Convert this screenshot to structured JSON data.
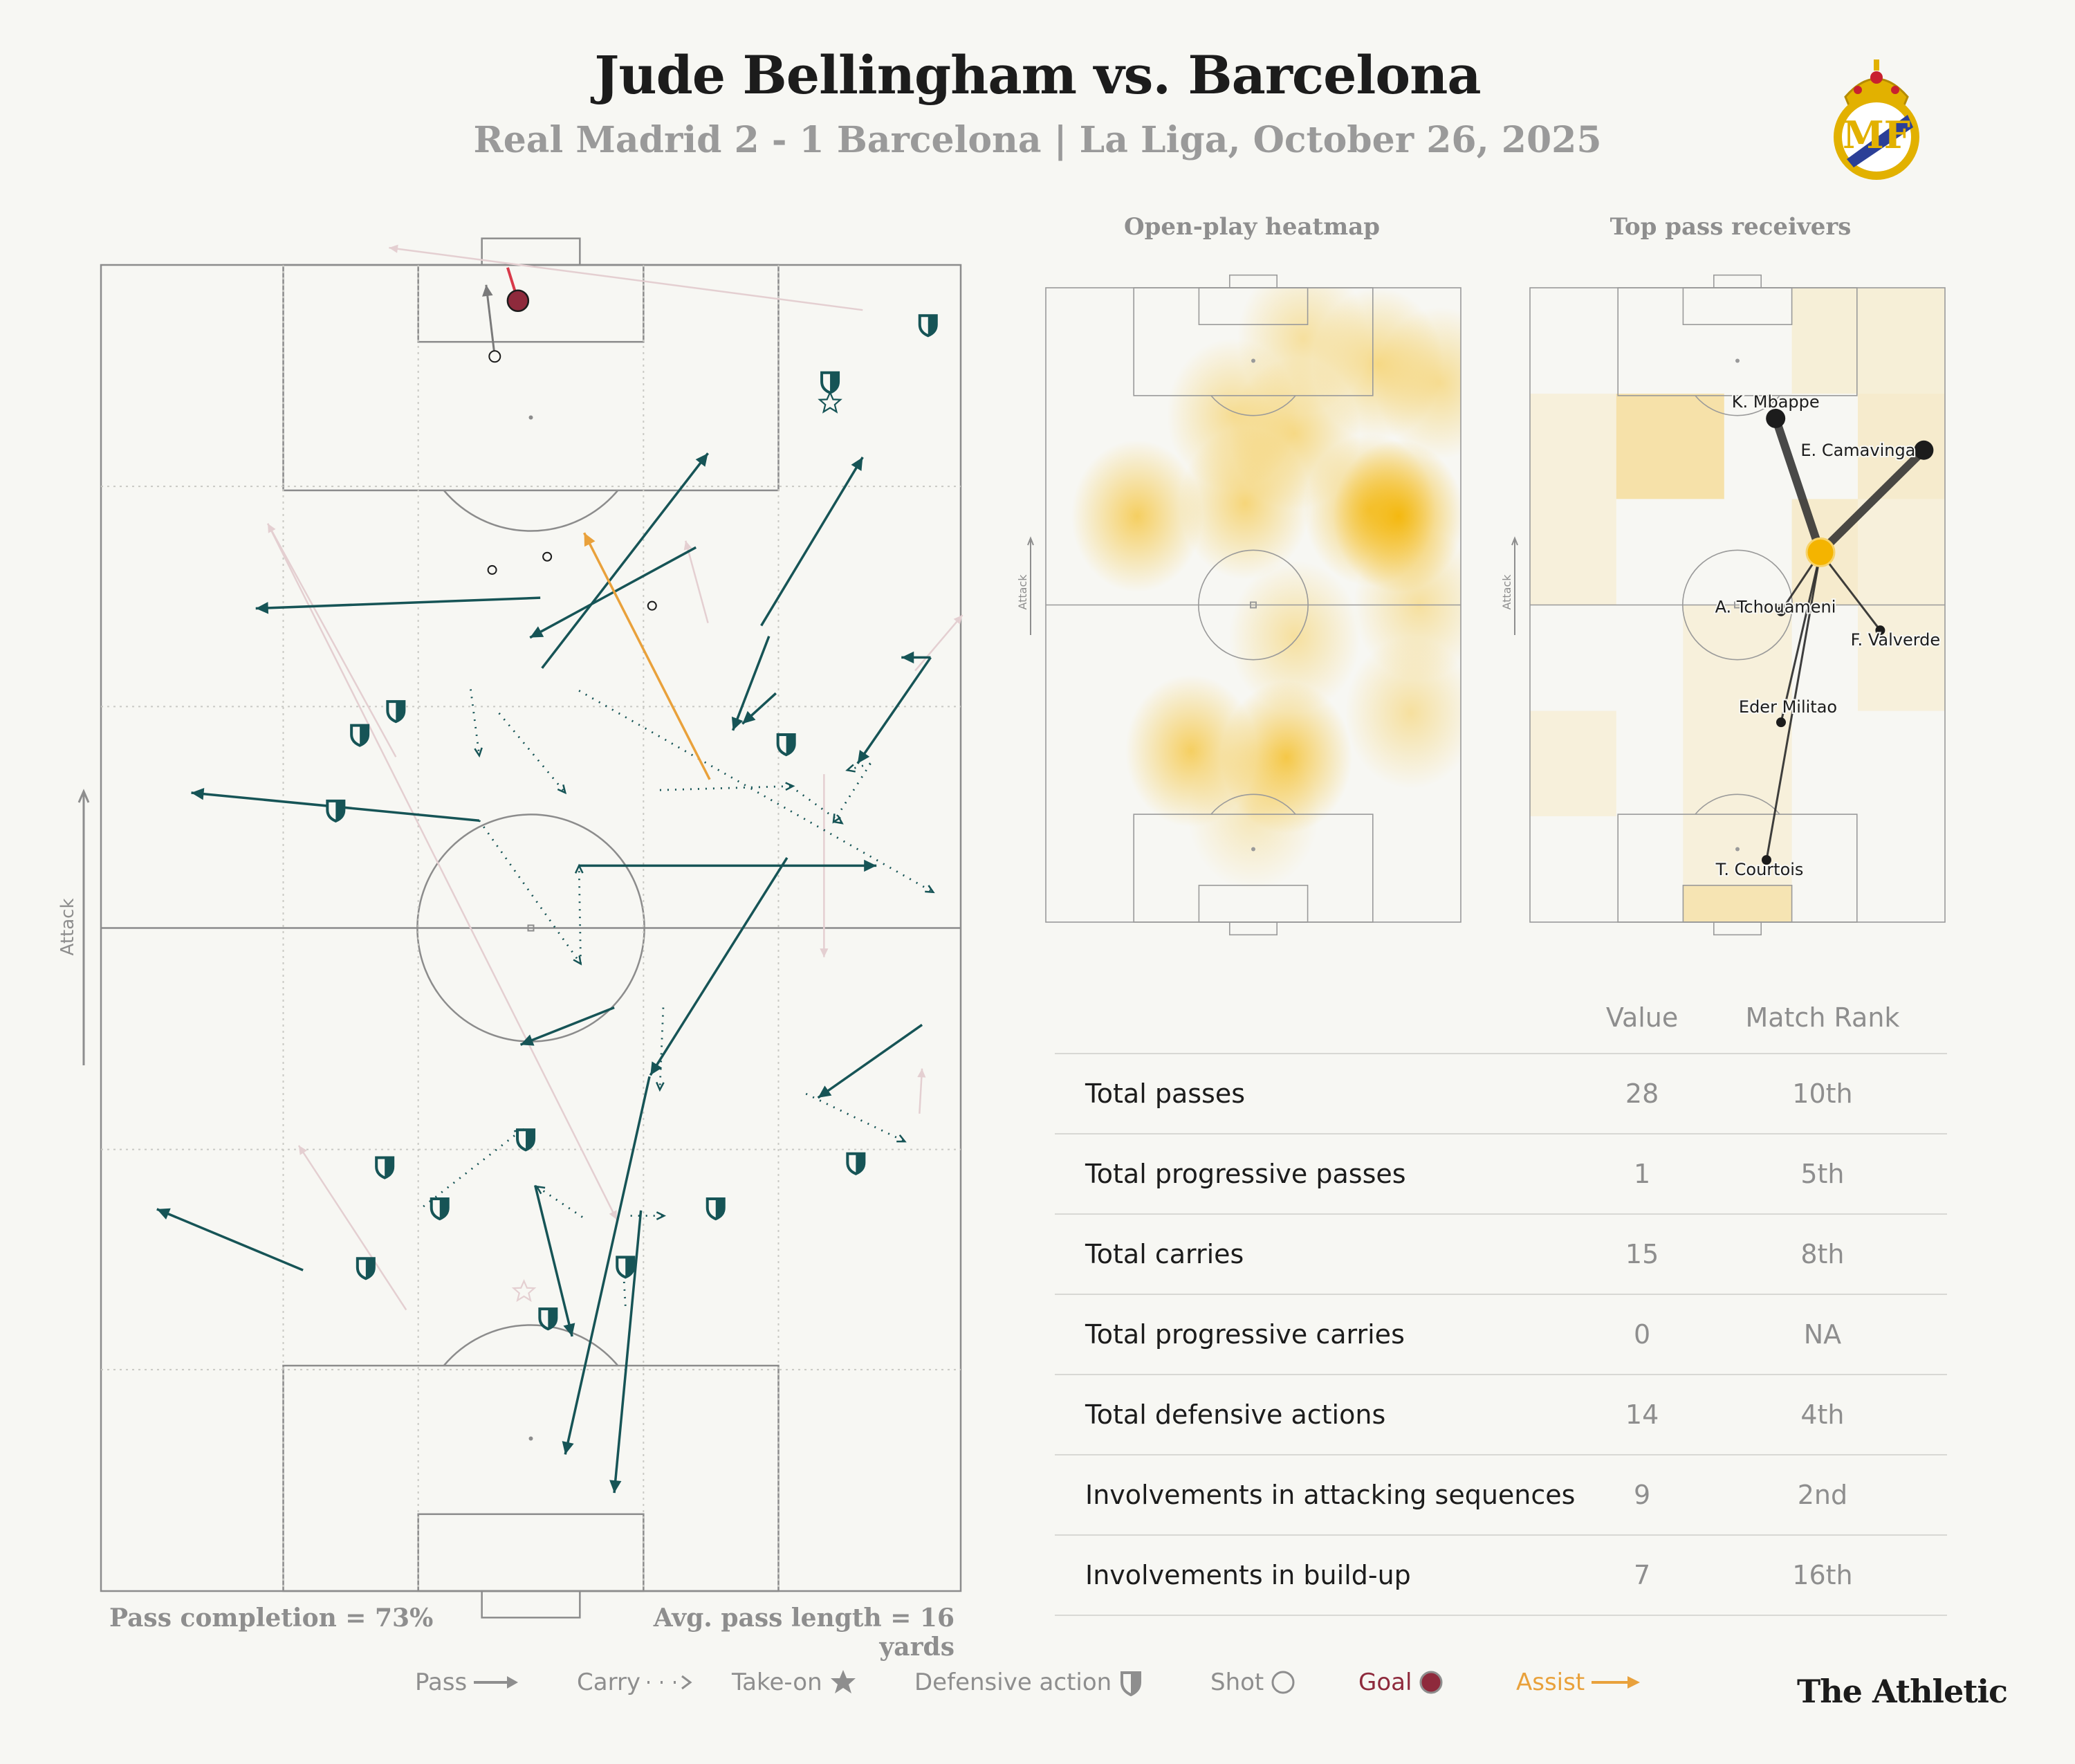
{
  "header": {
    "title": "Jude Bellingham vs. Barcelona",
    "subtitle": "Real Madrid 2 - 1 Barcelona | La Liga, October 26, 2025"
  },
  "colors": {
    "pass": "#165456",
    "assist": "#e9a13b",
    "goal": "#8e2a3c",
    "take_on": "#a9c2bd",
    "heat": "#f4b400",
    "background": "#f7f7f3",
    "muted_text": "#8e8e8e"
  },
  "icons": {
    "crest": "real-madrid-crest-icon",
    "defensive": "shield-icon",
    "take_on": "star-icon",
    "shot": "circle-icon"
  },
  "main_pitch": {
    "attack_label": "Attack",
    "footer_left": "Pass completion = 73%",
    "footer_right": "Avg. pass length = 16 yards"
  },
  "heatmap": {
    "title": "Open-play heatmap",
    "attack_label": "Attack"
  },
  "receivers": {
    "title": "Top pass receivers",
    "attack_label": "Attack"
  },
  "stats_table": {
    "col_value": "Value",
    "col_rank": "Match Rank",
    "rows": [
      {
        "label": "Total passes",
        "value": "28",
        "rank": "10th"
      },
      {
        "label": "Total progressive passes",
        "value": "1",
        "rank": "5th"
      },
      {
        "label": "Total carries",
        "value": "15",
        "rank": "8th"
      },
      {
        "label": "Total progressive carries",
        "value": "0",
        "rank": "NA"
      },
      {
        "label": "Total defensive actions",
        "value": "14",
        "rank": "4th"
      },
      {
        "label": "Involvements in attacking sequences",
        "value": "9",
        "rank": "2nd"
      },
      {
        "label": "Involvements in build-up",
        "value": "7",
        "rank": "16th"
      }
    ]
  },
  "legend": {
    "pass": "Pass",
    "carry": "Carry",
    "take_on": "Take-on",
    "defensive": "Defensive action",
    "shot": "Shot",
    "goal": "Goal",
    "assist": "Assist"
  },
  "brand": "The Athletic",
  "chart_data": [
    {
      "type": "scatter",
      "name": "event-map",
      "x_unit": "pitch width 0-100 (left to right)",
      "y_unit": "pitch length 0-100 (attacking direction upward)",
      "xlim": [
        0,
        100
      ],
      "ylim": [
        0,
        100
      ],
      "passes": [
        {
          "from": [
            51.3,
            69.6
          ],
          "to": [
            70.6,
            85.8
          ]
        },
        {
          "from": [
            51.1,
            74.9
          ],
          "to": [
            18.0,
            74.1
          ]
        },
        {
          "from": [
            69.2,
            78.7
          ],
          "to": [
            49.9,
            71.9
          ]
        },
        {
          "from": [
            76.8,
            72.8
          ],
          "to": [
            88.6,
            85.5
          ]
        },
        {
          "from": [
            78.5,
            67.7
          ],
          "to": [
            74.6,
            65.4
          ]
        },
        {
          "from": [
            77.7,
            72.0
          ],
          "to": [
            73.5,
            64.9
          ]
        },
        {
          "from": [
            96.5,
            70.4
          ],
          "to": [
            93.1,
            70.4
          ]
        },
        {
          "from": [
            96.5,
            70.4
          ],
          "to": [
            88.0,
            62.4
          ]
        },
        {
          "from": [
            44.0,
            58.1
          ],
          "to": [
            10.5,
            60.2
          ]
        },
        {
          "from": [
            55.6,
            54.7
          ],
          "to": [
            90.2,
            54.7
          ]
        },
        {
          "from": [
            59.7,
            44.0
          ],
          "to": [
            48.8,
            41.2
          ]
        },
        {
          "from": [
            79.8,
            55.3
          ],
          "to": [
            63.9,
            38.9
          ]
        },
        {
          "from": [
            95.5,
            42.7
          ],
          "to": [
            83.4,
            37.2
          ]
        },
        {
          "from": [
            23.5,
            24.2
          ],
          "to": [
            6.5,
            28.8
          ]
        },
        {
          "from": [
            63.8,
            38.8
          ],
          "to": [
            54.0,
            10.3
          ]
        },
        {
          "from": [
            50.5,
            30.6
          ],
          "to": [
            54.8,
            19.2
          ]
        },
        {
          "from": [
            62.8,
            28.7
          ],
          "to": [
            59.7,
            7.4
          ]
        }
      ],
      "carries": [
        {
          "from": [
            43.0,
            68.0
          ],
          "to": [
            44.0,
            63.0
          ]
        },
        {
          "from": [
            46.3,
            66.2
          ],
          "to": [
            54.0,
            60.2
          ]
        },
        {
          "from": [
            55.6,
            67.9
          ],
          "to": [
            96.8,
            52.7
          ]
        },
        {
          "from": [
            44.0,
            58.1
          ],
          "to": [
            55.8,
            47.3
          ]
        },
        {
          "from": [
            55.8,
            47.3
          ],
          "to": [
            55.6,
            54.7
          ]
        },
        {
          "from": [
            89.5,
            62.4
          ],
          "to": [
            85.2,
            58.0
          ]
        },
        {
          "from": [
            89.5,
            62.4
          ],
          "to": [
            86.8,
            61.9
          ]
        },
        {
          "from": [
            80.2,
            60.7
          ],
          "to": [
            86.2,
            57.9
          ]
        },
        {
          "from": [
            65.0,
            60.4
          ],
          "to": [
            80.5,
            60.7
          ]
        },
        {
          "from": [
            65.4,
            44.0
          ],
          "to": [
            65.0,
            37.8
          ]
        },
        {
          "from": [
            37.5,
            29.0
          ],
          "to": [
            49.0,
            34.8
          ]
        },
        {
          "from": [
            56.0,
            28.2
          ],
          "to": [
            50.7,
            30.5
          ]
        },
        {
          "from": [
            61.6,
            28.3
          ],
          "to": [
            65.5,
            28.3
          ]
        },
        {
          "from": [
            61.0,
            21.5
          ],
          "to": [
            60.7,
            25.0
          ]
        },
        {
          "from": [
            82.0,
            37.5
          ],
          "to": [
            93.5,
            33.9
          ]
        }
      ],
      "assists": [
        {
          "from": [
            70.8,
            61.2
          ],
          "to": [
            56.2,
            79.8
          ]
        }
      ],
      "goals": [
        {
          "x": 48.5,
          "y": 97.3,
          "to": [
            47.3,
            99.8
          ]
        }
      ],
      "shots": [
        {
          "x": 45.8,
          "y": 93.1,
          "to": [
            44.8,
            98.5
          ]
        },
        {
          "x": 45.5,
          "y": 77.0
        },
        {
          "x": 51.9,
          "y": 78.0
        },
        {
          "x": 64.1,
          "y": 74.3
        }
      ],
      "take_ons": [
        {
          "x": 84.8,
          "y": 89.6
        },
        {
          "x": 49.2,
          "y": 22.6
        }
      ],
      "defensive_actions": [
        {
          "x": 96.2,
          "y": 95.5
        },
        {
          "x": 84.8,
          "y": 91.2
        },
        {
          "x": 34.3,
          "y": 66.4
        },
        {
          "x": 30.1,
          "y": 64.6
        },
        {
          "x": 79.7,
          "y": 63.9
        },
        {
          "x": 27.3,
          "y": 58.9
        },
        {
          "x": 49.4,
          "y": 34.1
        },
        {
          "x": 33.0,
          "y": 32.0
        },
        {
          "x": 87.8,
          "y": 32.3
        },
        {
          "x": 39.4,
          "y": 28.9
        },
        {
          "x": 71.5,
          "y": 28.9
        },
        {
          "x": 61.0,
          "y": 24.5
        },
        {
          "x": 30.8,
          "y": 24.4
        },
        {
          "x": 52.0,
          "y": 20.6
        }
      ],
      "faded_events": [
        {
          "from": [
            88.6,
            96.6
          ],
          "to": [
            33.5,
            101.3
          ]
        },
        {
          "from": [
            34.3,
            62.9
          ],
          "to": [
            19.4,
            80.5
          ]
        },
        {
          "from": [
            70.6,
            73.0
          ],
          "to": [
            68.0,
            79.2
          ]
        },
        {
          "from": [
            94.7,
            69.4
          ],
          "to": [
            100.2,
            73.6
          ]
        },
        {
          "from": [
            84.1,
            61.6
          ],
          "to": [
            84.1,
            47.8
          ]
        },
        {
          "from": [
            95.2,
            36.0
          ],
          "to": [
            95.5,
            39.4
          ]
        },
        {
          "from": [
            35.5,
            21.2
          ],
          "to": [
            23.0,
            33.6
          ]
        },
        {
          "from": [
            19.4,
            80.5
          ],
          "to": [
            60.0,
            28.0
          ]
        }
      ]
    },
    {
      "type": "heatmap",
      "name": "open-play-heatmap",
      "x_unit": "pitch width 0-100",
      "y_unit": "pitch length 0-100",
      "intensity_scale": [
        0,
        1
      ],
      "blobs": [
        {
          "x": 62,
          "y": 92,
          "intensity": 0.35
        },
        {
          "x": 80,
          "y": 88,
          "intensity": 0.45
        },
        {
          "x": 95,
          "y": 85,
          "intensity": 0.4
        },
        {
          "x": 45,
          "y": 80,
          "intensity": 0.4
        },
        {
          "x": 60,
          "y": 77,
          "intensity": 0.45
        },
        {
          "x": 22,
          "y": 64,
          "intensity": 0.6
        },
        {
          "x": 48,
          "y": 66,
          "intensity": 0.5
        },
        {
          "x": 78,
          "y": 65,
          "intensity": 0.65
        },
        {
          "x": 85,
          "y": 64,
          "intensity": 0.9
        },
        {
          "x": 60,
          "y": 45,
          "intensity": 0.35
        },
        {
          "x": 90,
          "y": 50,
          "intensity": 0.35
        },
        {
          "x": 35,
          "y": 27,
          "intensity": 0.6
        },
        {
          "x": 58,
          "y": 26,
          "intensity": 0.7
        },
        {
          "x": 88,
          "y": 33,
          "intensity": 0.35
        },
        {
          "x": 50,
          "y": 17,
          "intensity": 0.25
        }
      ]
    },
    {
      "type": "scatter",
      "name": "top-pass-receivers",
      "x_unit": "pitch width 0-100",
      "y_unit": "pitch length 0-100",
      "player_location": {
        "x": 70.0,
        "y": 58.3
      },
      "zones": [
        {
          "x0": 20.8,
          "x1": 46.8,
          "y0": 66.7,
          "y1": 83.3,
          "intensity": 0.8
        },
        {
          "x0": 63.1,
          "x1": 79.0,
          "y0": 50.0,
          "y1": 66.7,
          "intensity": 0.4
        },
        {
          "x0": 79.0,
          "x1": 100.0,
          "y0": 66.7,
          "y1": 83.3,
          "intensity": 0.4
        },
        {
          "x0": 63.1,
          "x1": 79.0,
          "y0": 83.3,
          "y1": 100.0,
          "intensity": 0.3
        },
        {
          "x0": 79.0,
          "x1": 100.0,
          "y0": 83.3,
          "y1": 100.0,
          "intensity": 0.3
        },
        {
          "x0": 0.0,
          "x1": 20.8,
          "y0": 50.0,
          "y1": 83.3,
          "intensity": 0.25
        },
        {
          "x0": 79.0,
          "x1": 100.0,
          "y0": 33.3,
          "y1": 66.7,
          "intensity": 0.25
        },
        {
          "x0": 36.9,
          "x1": 63.1,
          "y0": 0.0,
          "y1": 50.0,
          "intensity": 0.25
        },
        {
          "x0": 0.0,
          "x1": 20.8,
          "y0": 16.7,
          "y1": 33.3,
          "intensity": 0.25
        },
        {
          "x0": 36.9,
          "x1": 63.1,
          "y0": 0.0,
          "y1": 5.8,
          "intensity": 0.5
        }
      ],
      "receivers": [
        {
          "name": "K. Mbappe",
          "x": 59.2,
          "y": 79.4,
          "passes": 4
        },
        {
          "name": "E. Camavinga",
          "x": 94.9,
          "y": 74.4,
          "passes": 4
        },
        {
          "name": "A. Tchouameni",
          "x": 60.5,
          "y": 49.0,
          "passes": 1
        },
        {
          "name": "F. Valverde",
          "x": 84.4,
          "y": 46.0,
          "passes": 1
        },
        {
          "name": "Eder Militao",
          "x": 60.5,
          "y": 31.5,
          "passes": 1
        },
        {
          "name": "T. Courtois",
          "x": 57.0,
          "y": 9.8,
          "passes": 1
        }
      ]
    }
  ]
}
